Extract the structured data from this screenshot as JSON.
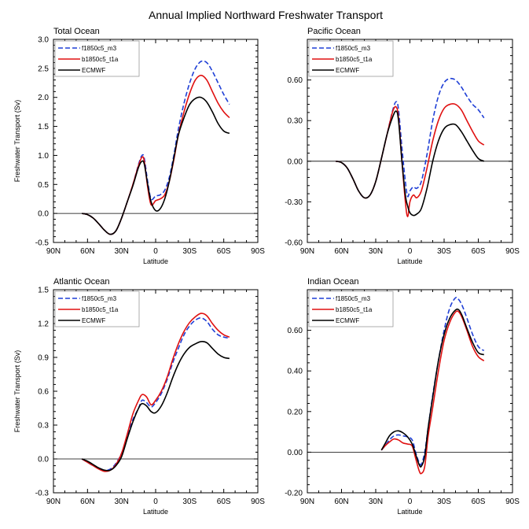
{
  "figure_title": "Annual Implied Northward Freshwater Transport",
  "colors": {
    "f1850c5_m3": "#1f3fd6",
    "b1850c5_t1a": "#e01010",
    "ECMWF": "#000000"
  },
  "chart_data": [
    {
      "type": "line",
      "title": "Total Ocean",
      "xlabel": "Latitude",
      "ylabel": "Freshwater Transport (Sv)",
      "xlim": [
        -90,
        90
      ],
      "ylim": [
        -0.5,
        3.0
      ],
      "xticks": [
        -90,
        -60,
        -30,
        0,
        30,
        60,
        90
      ],
      "xtick_labels": [
        "90N",
        "60N",
        "30N",
        "0",
        "30S",
        "60S",
        "90S"
      ],
      "yticks": [
        -0.5,
        0,
        0.5,
        1,
        1.5,
        2,
        2.5,
        3
      ],
      "ytick_labels": [
        "-0.5",
        "0.0",
        "0.5",
        "1.0",
        "1.5",
        "2.0",
        "2.5",
        "3.0"
      ],
      "legend": [
        "f1850c5_m3",
        "b1850c5_t1a",
        "ECMWF"
      ],
      "series": [
        {
          "name": "f1850c5_m3",
          "style": "dashed",
          "x": [
            -65,
            -60,
            -55,
            -50,
            -45,
            -40,
            -35,
            -30,
            -25,
            -20,
            -15,
            -12,
            -10,
            -7,
            -4,
            0,
            4,
            8,
            12,
            16,
            20,
            25,
            30,
            35,
            40,
            45,
            50,
            55,
            60,
            65
          ],
          "y": [
            0,
            -0.02,
            -0.08,
            -0.18,
            -0.29,
            -0.36,
            -0.3,
            -0.08,
            0.2,
            0.5,
            0.85,
            1.0,
            0.95,
            0.55,
            0.25,
            0.3,
            0.32,
            0.4,
            0.62,
            1.0,
            1.45,
            1.9,
            2.25,
            2.5,
            2.62,
            2.6,
            2.45,
            2.25,
            2.05,
            1.88
          ]
        },
        {
          "name": "b1850c5_t1a",
          "style": "solid",
          "x": [
            -65,
            -60,
            -55,
            -50,
            -45,
            -40,
            -35,
            -30,
            -25,
            -20,
            -15,
            -12,
            -10,
            -7,
            -4,
            0,
            4,
            8,
            12,
            16,
            20,
            25,
            30,
            35,
            40,
            45,
            50,
            55,
            60,
            65
          ],
          "y": [
            0,
            -0.02,
            -0.08,
            -0.18,
            -0.29,
            -0.36,
            -0.3,
            -0.08,
            0.2,
            0.5,
            0.83,
            0.97,
            0.9,
            0.45,
            0.15,
            0.22,
            0.25,
            0.32,
            0.55,
            0.92,
            1.35,
            1.75,
            2.07,
            2.3,
            2.38,
            2.3,
            2.1,
            1.9,
            1.75,
            1.65
          ]
        },
        {
          "name": "ECMWF",
          "style": "solid",
          "x": [
            -65,
            -60,
            -55,
            -50,
            -45,
            -40,
            -35,
            -30,
            -25,
            -20,
            -15,
            -12,
            -10,
            -7,
            -4,
            0,
            4,
            8,
            12,
            16,
            20,
            25,
            30,
            35,
            40,
            45,
            50,
            55,
            60,
            65
          ],
          "y": [
            0,
            -0.02,
            -0.08,
            -0.18,
            -0.29,
            -0.36,
            -0.3,
            -0.08,
            0.2,
            0.48,
            0.8,
            0.9,
            0.85,
            0.5,
            0.2,
            0.05,
            0.08,
            0.25,
            0.55,
            0.95,
            1.35,
            1.65,
            1.88,
            1.98,
            2.0,
            1.92,
            1.75,
            1.55,
            1.42,
            1.38
          ]
        }
      ]
    },
    {
      "type": "line",
      "title": "Pacific Ocean",
      "xlabel": "Latitude",
      "ylabel": "",
      "xlim": [
        -90,
        90
      ],
      "ylim": [
        -0.6,
        0.9
      ],
      "xticks": [
        -90,
        -60,
        -30,
        0,
        30,
        60,
        90
      ],
      "xtick_labels": [
        "90N",
        "60N",
        "30N",
        "0",
        "30S",
        "60S",
        "90S"
      ],
      "yticks": [
        -0.6,
        -0.3,
        0,
        0.3,
        0.6
      ],
      "ytick_labels": [
        "-0.60",
        "-0.30",
        "0.00",
        "0.30",
        "0.60"
      ],
      "legend": [
        "f1850c5_m3",
        "b1850c5_t1a",
        "ECMWF"
      ],
      "series": [
        {
          "name": "f1850c5_m3",
          "style": "dashed",
          "x": [
            -65,
            -60,
            -55,
            -50,
            -45,
            -40,
            -35,
            -30,
            -25,
            -20,
            -15,
            -12,
            -10,
            -7,
            -4,
            -2,
            0,
            3,
            6,
            10,
            15,
            20,
            25,
            30,
            35,
            40,
            45,
            50,
            55,
            60,
            65
          ],
          "y": [
            0,
            -0.01,
            -0.05,
            -0.13,
            -0.22,
            -0.27,
            -0.25,
            -0.15,
            0.02,
            0.2,
            0.38,
            0.44,
            0.38,
            0.1,
            -0.15,
            -0.26,
            -0.22,
            -0.19,
            -0.2,
            -0.15,
            0.05,
            0.3,
            0.48,
            0.58,
            0.61,
            0.6,
            0.55,
            0.48,
            0.42,
            0.38,
            0.32
          ]
        },
        {
          "name": "b1850c5_t1a",
          "style": "solid",
          "x": [
            -65,
            -60,
            -55,
            -50,
            -45,
            -40,
            -35,
            -30,
            -25,
            -20,
            -15,
            -12,
            -10,
            -7,
            -4,
            -2,
            0,
            3,
            6,
            10,
            15,
            20,
            25,
            30,
            35,
            40,
            45,
            50,
            55,
            60,
            65
          ],
          "y": [
            0,
            -0.01,
            -0.05,
            -0.13,
            -0.22,
            -0.27,
            -0.25,
            -0.15,
            0.02,
            0.2,
            0.37,
            0.4,
            0.32,
            0.0,
            -0.3,
            -0.41,
            -0.3,
            -0.25,
            -0.27,
            -0.22,
            -0.05,
            0.15,
            0.3,
            0.39,
            0.42,
            0.42,
            0.38,
            0.3,
            0.22,
            0.15,
            0.12
          ]
        },
        {
          "name": "ECMWF",
          "style": "solid",
          "x": [
            -65,
            -60,
            -55,
            -50,
            -45,
            -40,
            -35,
            -30,
            -25,
            -20,
            -15,
            -12,
            -10,
            -7,
            -4,
            -2,
            0,
            3,
            6,
            10,
            15,
            20,
            25,
            30,
            35,
            40,
            45,
            50,
            55,
            60,
            65
          ],
          "y": [
            0,
            -0.01,
            -0.05,
            -0.13,
            -0.22,
            -0.27,
            -0.25,
            -0.15,
            0.02,
            0.2,
            0.33,
            0.37,
            0.3,
            0.0,
            -0.25,
            -0.33,
            -0.38,
            -0.4,
            -0.39,
            -0.35,
            -0.2,
            0.0,
            0.15,
            0.24,
            0.27,
            0.27,
            0.22,
            0.15,
            0.08,
            0.02,
            0.0
          ]
        }
      ]
    },
    {
      "type": "line",
      "title": "Atlantic Ocean",
      "xlabel": "Latitude",
      "ylabel": "Freshwater Transport (Sv)",
      "xlim": [
        -90,
        90
      ],
      "ylim": [
        -0.3,
        1.5
      ],
      "xticks": [
        -90,
        -60,
        -30,
        0,
        30,
        60,
        90
      ],
      "xtick_labels": [
        "90N",
        "60N",
        "30N",
        "0",
        "30S",
        "60S",
        "90S"
      ],
      "yticks": [
        -0.3,
        0,
        0.3,
        0.6,
        0.9,
        1.2,
        1.5
      ],
      "ytick_labels": [
        "-0.3",
        "0.0",
        "0.3",
        "0.6",
        "0.9",
        "1.2",
        "1.5"
      ],
      "legend": [
        "f1850c5_m3",
        "b1850c5_t1a",
        "ECMWF"
      ],
      "series": [
        {
          "name": "f1850c5_m3",
          "style": "dashed",
          "x": [
            -65,
            -60,
            -55,
            -50,
            -45,
            -40,
            -35,
            -30,
            -25,
            -20,
            -15,
            -12,
            -8,
            -4,
            0,
            5,
            10,
            15,
            20,
            25,
            30,
            35,
            40,
            45,
            50,
            55,
            60,
            65
          ],
          "y": [
            0,
            -0.03,
            -0.06,
            -0.08,
            -0.1,
            -0.09,
            -0.04,
            0.05,
            0.2,
            0.35,
            0.45,
            0.52,
            0.5,
            0.46,
            0.5,
            0.58,
            0.7,
            0.85,
            0.98,
            1.1,
            1.18,
            1.23,
            1.25,
            1.22,
            1.15,
            1.1,
            1.08,
            1.07
          ]
        },
        {
          "name": "b1850c5_t1a",
          "style": "solid",
          "x": [
            -65,
            -60,
            -55,
            -50,
            -45,
            -40,
            -35,
            -30,
            -25,
            -20,
            -15,
            -12,
            -8,
            -4,
            0,
            5,
            10,
            15,
            20,
            25,
            30,
            35,
            40,
            45,
            50,
            55,
            60,
            65
          ],
          "y": [
            0,
            -0.03,
            -0.06,
            -0.09,
            -0.11,
            -0.1,
            -0.05,
            0.05,
            0.22,
            0.4,
            0.52,
            0.57,
            0.55,
            0.48,
            0.52,
            0.6,
            0.72,
            0.88,
            1.02,
            1.13,
            1.21,
            1.26,
            1.29,
            1.27,
            1.2,
            1.14,
            1.1,
            1.08
          ]
        },
        {
          "name": "ECMWF",
          "style": "solid",
          "x": [
            -65,
            -60,
            -55,
            -50,
            -45,
            -40,
            -35,
            -30,
            -25,
            -20,
            -15,
            -12,
            -8,
            -4,
            0,
            5,
            10,
            15,
            20,
            25,
            30,
            35,
            40,
            45,
            50,
            55,
            60,
            65
          ],
          "y": [
            0,
            -0.02,
            -0.05,
            -0.08,
            -0.1,
            -0.1,
            -0.06,
            0.02,
            0.18,
            0.33,
            0.45,
            0.49,
            0.47,
            0.42,
            0.41,
            0.47,
            0.58,
            0.72,
            0.84,
            0.93,
            0.99,
            1.02,
            1.04,
            1.03,
            0.98,
            0.93,
            0.9,
            0.89
          ]
        }
      ]
    },
    {
      "type": "line",
      "title": "Indian Ocean",
      "xlabel": "Latitude",
      "ylabel": "",
      "xlim": [
        -90,
        90
      ],
      "ylim": [
        -0.2,
        0.8
      ],
      "xticks": [
        -90,
        -60,
        -30,
        0,
        30,
        60,
        90
      ],
      "xtick_labels": [
        "90N",
        "60N",
        "30N",
        "0",
        "30S",
        "60S",
        "90S"
      ],
      "yticks": [
        -0.2,
        0,
        0.2,
        0.4,
        0.6
      ],
      "ytick_labels": [
        "-0.20",
        "0.00",
        "0.20",
        "0.40",
        "0.60"
      ],
      "legend": [
        "f1850c5_m3",
        "b1850c5_t1a",
        "ECMWF"
      ],
      "series": [
        {
          "name": "f1850c5_m3",
          "style": "dashed",
          "x": [
            -25,
            -22,
            -18,
            -14,
            -10,
            -6,
            -2,
            2,
            5,
            8,
            10,
            13,
            16,
            20,
            25,
            30,
            35,
            40,
            43,
            46,
            50,
            55,
            60,
            65
          ],
          "y": [
            0.01,
            0.03,
            0.06,
            0.08,
            0.085,
            0.08,
            0.075,
            0.06,
            0.0,
            -0.05,
            -0.06,
            0.0,
            0.12,
            0.28,
            0.45,
            0.6,
            0.71,
            0.76,
            0.75,
            0.72,
            0.66,
            0.58,
            0.52,
            0.5
          ]
        },
        {
          "name": "b1850c5_t1a",
          "style": "solid",
          "x": [
            -25,
            -22,
            -18,
            -14,
            -10,
            -6,
            -2,
            2,
            5,
            8,
            10,
            13,
            16,
            20,
            25,
            30,
            35,
            40,
            43,
            46,
            50,
            55,
            60,
            65
          ],
          "y": [
            0.01,
            0.03,
            0.05,
            0.065,
            0.06,
            0.045,
            0.04,
            0.03,
            -0.03,
            -0.09,
            -0.105,
            -0.07,
            0.08,
            0.22,
            0.4,
            0.55,
            0.64,
            0.69,
            0.69,
            0.66,
            0.6,
            0.52,
            0.47,
            0.45
          ]
        },
        {
          "name": "ECMWF",
          "style": "solid",
          "x": [
            -25,
            -22,
            -18,
            -14,
            -10,
            -6,
            -2,
            2,
            5,
            8,
            10,
            13,
            16,
            20,
            25,
            30,
            35,
            40,
            43,
            46,
            50,
            55,
            60,
            65
          ],
          "y": [
            0.01,
            0.04,
            0.08,
            0.1,
            0.105,
            0.095,
            0.075,
            0.04,
            -0.01,
            -0.06,
            -0.07,
            -0.02,
            0.12,
            0.27,
            0.45,
            0.58,
            0.66,
            0.7,
            0.7,
            0.67,
            0.61,
            0.54,
            0.49,
            0.48
          ]
        }
      ]
    }
  ]
}
